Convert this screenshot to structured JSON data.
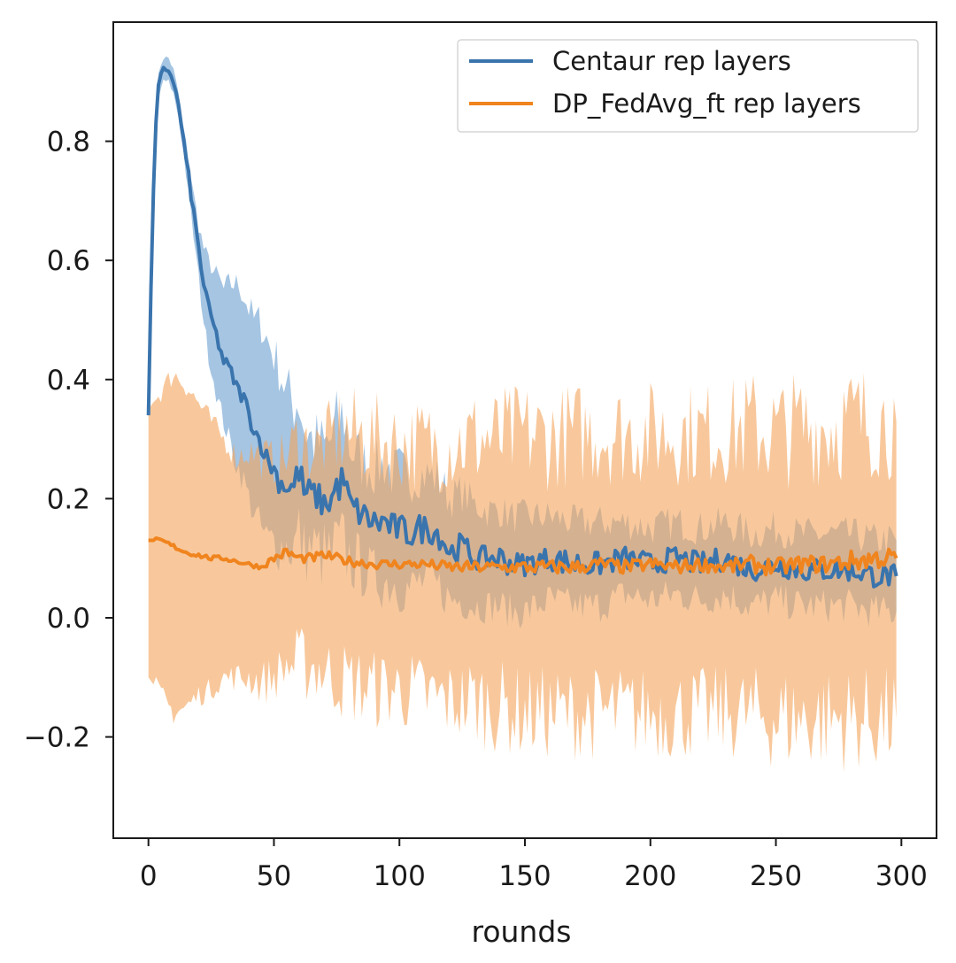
{
  "chart_data": {
    "type": "line",
    "title": "",
    "xlabel": "rounds",
    "ylabel": "",
    "xlim": [
      -14,
      314
    ],
    "ylim": [
      -0.37,
      1.0
    ],
    "xticks": [
      0,
      50,
      100,
      150,
      200,
      250,
      300
    ],
    "xtick_labels": [
      "0",
      "50",
      "100",
      "150",
      "200",
      "250",
      "300"
    ],
    "yticks": [
      -0.2,
      0.0,
      0.2,
      0.4,
      0.6,
      0.8
    ],
    "ytick_labels": [
      "−0.2",
      "0.0",
      "0.2",
      "0.4",
      "0.6",
      "0.8"
    ],
    "grid": false,
    "legend": {
      "position": "top-right",
      "entries": [
        "Centaur rep layers",
        "DP_FedAvg_ft rep layers"
      ]
    },
    "series": [
      {
        "name": "Centaur rep layers",
        "color": "#3a74ad",
        "band_color": "#5b95cc",
        "mean": {
          "x": [
            0,
            1,
            2,
            3,
            4,
            5,
            6,
            8,
            10,
            12,
            14,
            16,
            18,
            20,
            22,
            24,
            26,
            28,
            30,
            32,
            34,
            36,
            38,
            40,
            42,
            44,
            46,
            48,
            50,
            52,
            55,
            58,
            60,
            62,
            65,
            68,
            70,
            73,
            75,
            78,
            80,
            83,
            86,
            90,
            94,
            98,
            100,
            104,
            108,
            112,
            116,
            120,
            125,
            130,
            135,
            140,
            145,
            150,
            160,
            170,
            180,
            190,
            200,
            210,
            220,
            230,
            240,
            250,
            260,
            270,
            280,
            290,
            298
          ],
          "y": [
            0.34,
            0.55,
            0.72,
            0.83,
            0.89,
            0.91,
            0.92,
            0.92,
            0.9,
            0.86,
            0.8,
            0.74,
            0.68,
            0.62,
            0.56,
            0.52,
            0.49,
            0.46,
            0.43,
            0.42,
            0.4,
            0.38,
            0.37,
            0.34,
            0.32,
            0.3,
            0.28,
            0.26,
            0.25,
            0.23,
            0.22,
            0.22,
            0.25,
            0.21,
            0.21,
            0.2,
            0.19,
            0.2,
            0.22,
            0.23,
            0.19,
            0.18,
            0.17,
            0.16,
            0.16,
            0.15,
            0.15,
            0.14,
            0.15,
            0.15,
            0.14,
            0.11,
            0.12,
            0.1,
            0.1,
            0.1,
            0.09,
            0.09,
            0.1,
            0.09,
            0.09,
            0.1,
            0.09,
            0.1,
            0.09,
            0.1,
            0.08,
            0.09,
            0.08,
            0.08,
            0.08,
            0.07,
            0.07
          ],
          "noise": [
            0.01,
            0.01,
            0.005,
            0.005,
            0.005,
            0.005,
            0.005,
            0.005,
            0.005,
            0.005,
            0.008,
            0.01,
            0.01,
            0.012,
            0.012,
            0.01,
            0.01,
            0.012,
            0.012,
            0.012,
            0.012,
            0.012,
            0.015,
            0.015,
            0.015,
            0.015,
            0.015,
            0.015,
            0.018,
            0.02,
            0.02,
            0.025,
            0.03,
            0.025,
            0.025,
            0.025,
            0.025,
            0.03,
            0.03,
            0.03,
            0.03,
            0.025,
            0.025,
            0.025,
            0.03,
            0.025,
            0.025,
            0.025,
            0.025,
            0.025,
            0.025,
            0.02,
            0.025,
            0.02,
            0.02,
            0.025,
            0.02,
            0.02,
            0.02,
            0.025,
            0.02,
            0.02,
            0.02,
            0.02,
            0.02,
            0.02,
            0.02,
            0.02,
            0.02,
            0.02,
            0.02,
            0.02,
            0.02
          ]
        },
        "band_upper": {
          "x": [
            0,
            1,
            2,
            3,
            4,
            5,
            6,
            8,
            10,
            12,
            14,
            16,
            18,
            20,
            22,
            24,
            26,
            28,
            30,
            32,
            34,
            36,
            38,
            40,
            42,
            44,
            46,
            48,
            50,
            52,
            55,
            58,
            60,
            62,
            65,
            68,
            70,
            73,
            75,
            78,
            80,
            83,
            86,
            90,
            94,
            98,
            100,
            104,
            108,
            112,
            116,
            120,
            125,
            130,
            135,
            140,
            145,
            150,
            160,
            170,
            180,
            190,
            200,
            210,
            220,
            230,
            240,
            250,
            260,
            270,
            280,
            290,
            298
          ],
          "y": [
            0.35,
            0.57,
            0.74,
            0.85,
            0.91,
            0.93,
            0.94,
            0.94,
            0.92,
            0.88,
            0.82,
            0.77,
            0.71,
            0.66,
            0.62,
            0.6,
            0.58,
            0.57,
            0.55,
            0.56,
            0.56,
            0.56,
            0.54,
            0.52,
            0.5,
            0.5,
            0.48,
            0.46,
            0.44,
            0.42,
            0.38,
            0.36,
            0.37,
            0.32,
            0.3,
            0.29,
            0.28,
            0.3,
            0.32,
            0.34,
            0.29,
            0.27,
            0.26,
            0.25,
            0.26,
            0.24,
            0.25,
            0.23,
            0.24,
            0.24,
            0.23,
            0.2,
            0.21,
            0.19,
            0.18,
            0.18,
            0.17,
            0.17,
            0.17,
            0.16,
            0.16,
            0.16,
            0.15,
            0.16,
            0.15,
            0.16,
            0.14,
            0.15,
            0.14,
            0.14,
            0.14,
            0.13,
            0.13
          ],
          "noise": [
            0.005,
            0.005,
            0.005,
            0.005,
            0.005,
            0.005,
            0.005,
            0.005,
            0.005,
            0.005,
            0.01,
            0.01,
            0.012,
            0.015,
            0.015,
            0.015,
            0.018,
            0.02,
            0.02,
            0.022,
            0.022,
            0.025,
            0.025,
            0.03,
            0.03,
            0.03,
            0.035,
            0.035,
            0.04,
            0.045,
            0.05,
            0.06,
            0.07,
            0.06,
            0.06,
            0.06,
            0.07,
            0.07,
            0.07,
            0.07,
            0.06,
            0.06,
            0.05,
            0.05,
            0.05,
            0.05,
            0.045,
            0.04,
            0.04,
            0.04,
            0.04,
            0.035,
            0.035,
            0.03,
            0.03,
            0.03,
            0.03,
            0.03,
            0.03,
            0.03,
            0.03,
            0.03,
            0.03,
            0.03,
            0.03,
            0.03,
            0.03,
            0.03,
            0.03,
            0.03,
            0.03,
            0.03,
            0.03
          ]
        },
        "band_lower": {
          "x": [
            0,
            1,
            2,
            3,
            4,
            5,
            6,
            8,
            10,
            12,
            14,
            16,
            18,
            20,
            22,
            24,
            26,
            28,
            30,
            32,
            34,
            36,
            38,
            40,
            42,
            44,
            46,
            48,
            50,
            52,
            55,
            58,
            60,
            62,
            65,
            68,
            70,
            73,
            75,
            78,
            80,
            83,
            86,
            90,
            94,
            98,
            100,
            104,
            108,
            112,
            116,
            120,
            125,
            130,
            135,
            140,
            145,
            150,
            160,
            170,
            180,
            190,
            200,
            210,
            220,
            230,
            240,
            250,
            260,
            270,
            280,
            290,
            298
          ],
          "y": [
            0.33,
            0.53,
            0.7,
            0.81,
            0.87,
            0.89,
            0.9,
            0.9,
            0.88,
            0.84,
            0.78,
            0.71,
            0.64,
            0.57,
            0.5,
            0.44,
            0.4,
            0.36,
            0.33,
            0.3,
            0.27,
            0.25,
            0.23,
            0.2,
            0.18,
            0.16,
            0.14,
            0.13,
            0.13,
            0.12,
            0.12,
            0.12,
            0.14,
            0.11,
            0.12,
            0.11,
            0.1,
            0.1,
            0.12,
            0.12,
            0.1,
            0.09,
            0.08,
            0.07,
            0.06,
            0.06,
            0.05,
            0.05,
            0.06,
            0.06,
            0.05,
            0.03,
            0.03,
            0.02,
            0.02,
            0.02,
            0.01,
            0.01,
            0.03,
            0.02,
            0.02,
            0.04,
            0.03,
            0.04,
            0.03,
            0.04,
            0.02,
            0.03,
            0.02,
            0.02,
            0.02,
            0.01,
            0.01
          ],
          "noise": [
            0.005,
            0.005,
            0.005,
            0.005,
            0.005,
            0.005,
            0.005,
            0.005,
            0.005,
            0.005,
            0.01,
            0.01,
            0.012,
            0.015,
            0.015,
            0.015,
            0.018,
            0.02,
            0.02,
            0.022,
            0.022,
            0.025,
            0.025,
            0.03,
            0.03,
            0.03,
            0.035,
            0.035,
            0.04,
            0.045,
            0.05,
            0.06,
            0.07,
            0.06,
            0.06,
            0.06,
            0.07,
            0.07,
            0.07,
            0.07,
            0.06,
            0.06,
            0.05,
            0.05,
            0.05,
            0.05,
            0.045,
            0.04,
            0.04,
            0.04,
            0.04,
            0.035,
            0.035,
            0.03,
            0.03,
            0.03,
            0.03,
            0.03,
            0.03,
            0.03,
            0.03,
            0.03,
            0.03,
            0.03,
            0.03,
            0.03,
            0.03,
            0.03,
            0.03,
            0.03,
            0.03,
            0.03,
            0.03
          ]
        }
      },
      {
        "name": "DP_FedAvg_ft rep layers",
        "color": "#f0841e",
        "band_color": "#f3a35a",
        "mean": {
          "x": [
            0,
            5,
            10,
            15,
            20,
            25,
            30,
            35,
            40,
            45,
            50,
            55,
            60,
            65,
            70,
            75,
            80,
            90,
            100,
            110,
            120,
            130,
            140,
            150,
            160,
            170,
            180,
            190,
            200,
            210,
            220,
            230,
            240,
            250,
            260,
            270,
            280,
            290,
            298
          ],
          "y": [
            0.13,
            0.13,
            0.12,
            0.11,
            0.105,
            0.1,
            0.1,
            0.095,
            0.09,
            0.085,
            0.1,
            0.11,
            0.1,
            0.1,
            0.105,
            0.1,
            0.095,
            0.09,
            0.09,
            0.09,
            0.085,
            0.085,
            0.085,
            0.085,
            0.085,
            0.085,
            0.09,
            0.085,
            0.09,
            0.085,
            0.09,
            0.085,
            0.09,
            0.085,
            0.09,
            0.09,
            0.095,
            0.1,
            0.1
          ],
          "noise": [
            0.004,
            0.004,
            0.004,
            0.004,
            0.004,
            0.004,
            0.004,
            0.004,
            0.004,
            0.004,
            0.008,
            0.008,
            0.008,
            0.008,
            0.008,
            0.008,
            0.008,
            0.008,
            0.008,
            0.008,
            0.01,
            0.01,
            0.01,
            0.012,
            0.012,
            0.012,
            0.012,
            0.012,
            0.012,
            0.012,
            0.012,
            0.012,
            0.015,
            0.015,
            0.015,
            0.015,
            0.018,
            0.018,
            0.018
          ]
        },
        "band_upper": {
          "x": [
            0,
            5,
            10,
            15,
            20,
            25,
            30,
            35,
            40,
            45,
            50,
            55,
            60,
            65,
            70,
            75,
            80,
            90,
            100,
            110,
            120,
            130,
            140,
            150,
            160,
            170,
            180,
            190,
            200,
            210,
            220,
            230,
            240,
            250,
            260,
            270,
            280,
            290,
            298
          ],
          "y": [
            0.35,
            0.38,
            0.41,
            0.39,
            0.36,
            0.33,
            0.3,
            0.27,
            0.28,
            0.27,
            0.26,
            0.27,
            0.3,
            0.28,
            0.29,
            0.31,
            0.31,
            0.3,
            0.29,
            0.29,
            0.29,
            0.3,
            0.3,
            0.31,
            0.3,
            0.31,
            0.31,
            0.31,
            0.31,
            0.31,
            0.31,
            0.31,
            0.32,
            0.31,
            0.32,
            0.32,
            0.33,
            0.33,
            0.33
          ],
          "noise": [
            0.02,
            0.02,
            0.02,
            0.02,
            0.02,
            0.02,
            0.02,
            0.025,
            0.03,
            0.04,
            0.04,
            0.05,
            0.07,
            0.06,
            0.06,
            0.08,
            0.08,
            0.08,
            0.08,
            0.08,
            0.08,
            0.09,
            0.09,
            0.09,
            0.09,
            0.09,
            0.09,
            0.09,
            0.09,
            0.09,
            0.09,
            0.09,
            0.1,
            0.1,
            0.1,
            0.1,
            0.1,
            0.1,
            0.1
          ]
        },
        "band_lower": {
          "x": [
            0,
            5,
            10,
            15,
            20,
            25,
            30,
            35,
            40,
            45,
            50,
            55,
            60,
            65,
            70,
            75,
            80,
            90,
            100,
            110,
            120,
            130,
            140,
            150,
            160,
            170,
            180,
            190,
            200,
            210,
            220,
            230,
            240,
            250,
            260,
            270,
            280,
            290,
            298
          ],
          "y": [
            -0.1,
            -0.13,
            -0.16,
            -0.15,
            -0.13,
            -0.12,
            -0.1,
            -0.1,
            -0.1,
            -0.11,
            -0.1,
            -0.08,
            -0.08,
            -0.08,
            -0.09,
            -0.1,
            -0.11,
            -0.12,
            -0.12,
            -0.13,
            -0.14,
            -0.14,
            -0.15,
            -0.16,
            -0.16,
            -0.16,
            -0.16,
            -0.16,
            -0.16,
            -0.16,
            -0.16,
            -0.16,
            -0.16,
            -0.17,
            -0.17,
            -0.17,
            -0.17,
            -0.17,
            -0.17
          ],
          "noise": [
            0.02,
            0.02,
            0.02,
            0.02,
            0.02,
            0.02,
            0.02,
            0.025,
            0.03,
            0.04,
            0.04,
            0.05,
            0.07,
            0.06,
            0.06,
            0.07,
            0.07,
            0.07,
            0.07,
            0.07,
            0.07,
            0.08,
            0.08,
            0.08,
            0.08,
            0.08,
            0.08,
            0.08,
            0.08,
            0.08,
            0.08,
            0.08,
            0.08,
            0.09,
            0.09,
            0.09,
            0.09,
            0.09,
            0.09
          ]
        }
      }
    ]
  }
}
